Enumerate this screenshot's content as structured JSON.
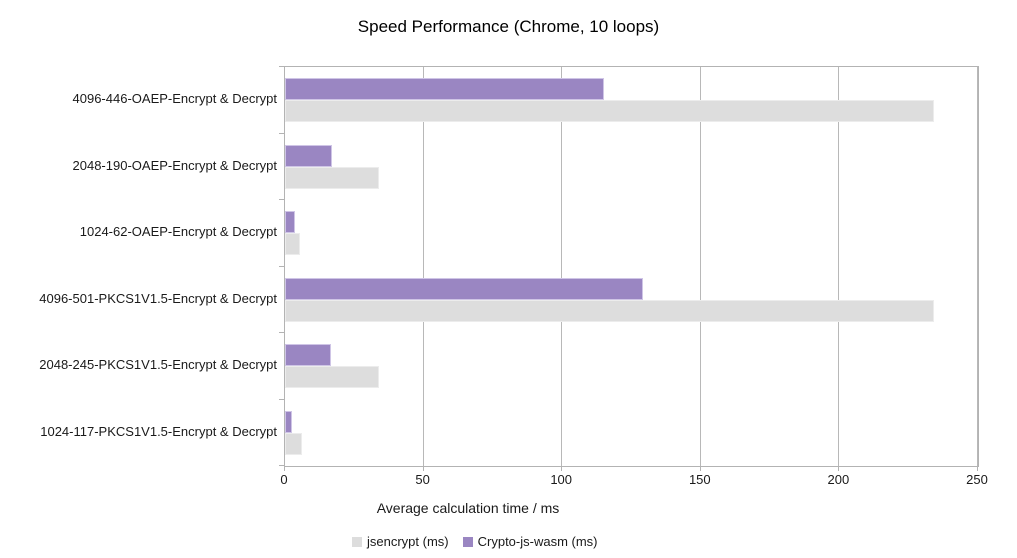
{
  "chart_data": {
    "type": "bar",
    "orientation": "horizontal",
    "title": "Speed Performance (Chrome, 10 loops)",
    "xlabel": "Average calculation time / ms",
    "ylabel": "",
    "xlim": [
      0,
      250
    ],
    "x_ticks": [
      0,
      50,
      100,
      150,
      200,
      250
    ],
    "grid": true,
    "legend_position": "bottom",
    "categories": [
      "4096-446-OAEP-Encrypt & Decrypt",
      "2048-190-OAEP-Encrypt & Decrypt",
      "1024-62-OAEP-Encrypt & Decrypt",
      "4096-501-PKCS1V1.5-Encrypt & Decrypt",
      "2048-245-PKCS1V1.5-Encrypt & Decrypt",
      "1024-117-PKCS1V1.5-Encrypt & Decrypt"
    ],
    "series": [
      {
        "name": "jsencrypt (ms)",
        "color": "#dddddd",
        "border_color": "#ececec",
        "values": [
          234,
          34,
          5.5,
          234,
          34,
          6
        ]
      },
      {
        "name": "Crypto-js-wasm (ms)",
        "color": "#9a86c2",
        "border_color": "#cfc5e6",
        "values": [
          115,
          17,
          3.5,
          129,
          16.5,
          2.6
        ]
      }
    ],
    "bar_order_top_to_bottom": [
      "Crypto-js-wasm (ms)",
      "jsencrypt (ms)"
    ],
    "axis_color": "#b3b3b3",
    "gridline_color": "#b8b8b8",
    "text_color": "#1a1a1a"
  }
}
